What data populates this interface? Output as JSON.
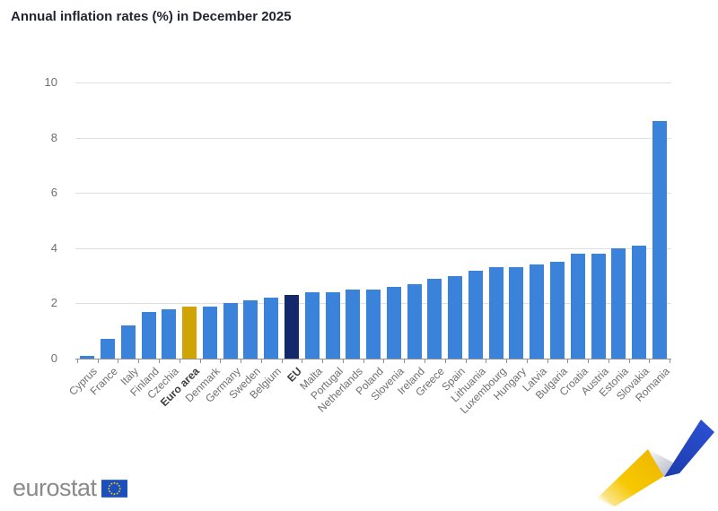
{
  "page": {
    "title": "Annual inflation rates (%) in December 2025"
  },
  "chart_data": {
    "type": "bar",
    "title": "Annual inflation rates (%) in December 2025",
    "categories": [
      "Cyprus",
      "France",
      "Italy",
      "Finland",
      "Czechia",
      "Euro area",
      "Denmark",
      "Germany",
      "Sweden",
      "Belgium",
      "EU",
      "Malta",
      "Portugal",
      "Netherlands",
      "Poland",
      "Slovenia",
      "Ireland",
      "Greece",
      "Spain",
      "Lithuania",
      "Luxembourg",
      "Hungary",
      "Latvia",
      "Bulgaria",
      "Croatia",
      "Austria",
      "Estonia",
      "Slovakia",
      "Romania"
    ],
    "values": [
      0.1,
      0.7,
      1.2,
      1.7,
      1.8,
      1.9,
      1.9,
      2.0,
      2.1,
      2.2,
      2.3,
      2.4,
      2.4,
      2.5,
      2.5,
      2.6,
      2.7,
      2.9,
      3.0,
      3.2,
      3.3,
      3.3,
      3.4,
      3.5,
      3.8,
      3.8,
      4.0,
      4.1,
      8.6
    ],
    "bold_categories": [
      "Euro area",
      "EU"
    ],
    "xlabel": "",
    "ylabel": "",
    "ylim": [
      0,
      10
    ],
    "yticks": [
      0,
      2,
      4,
      6,
      8,
      10
    ],
    "grid": "horizontal",
    "legend": "none",
    "colors": {
      "default_bar": "#3a82da",
      "euro_area_bar": "#d0a404",
      "eu_bar": "#13296b"
    }
  },
  "footer": {
    "logo_text": "eurostat",
    "flag_color": "#1c4fbe",
    "star_color": "#ffcc00"
  },
  "deco": {
    "yellow": "#f5c400",
    "blue": "#2445c4",
    "gray_light": "#f2f3f5",
    "gray_dark": "#b9bec9"
  }
}
